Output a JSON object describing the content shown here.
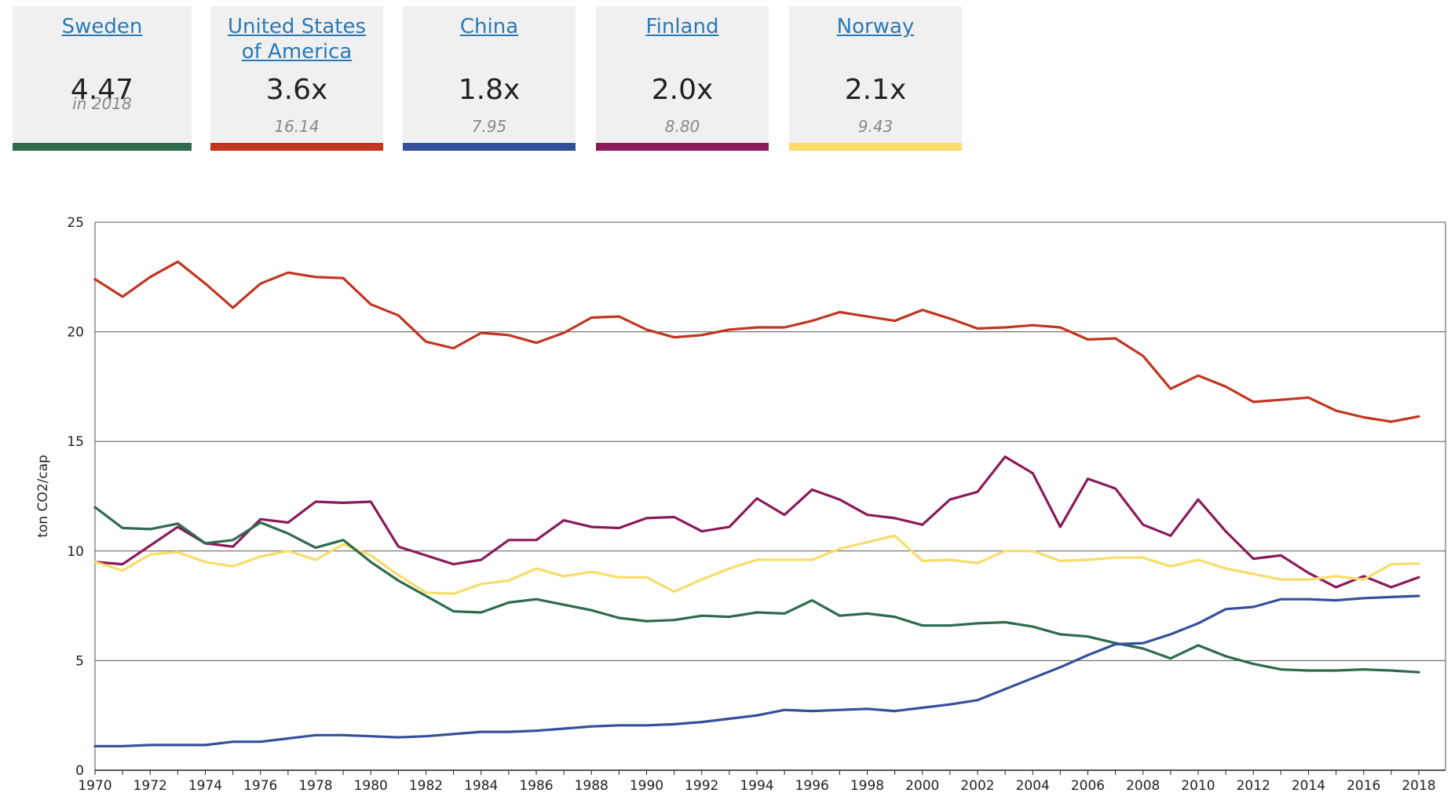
{
  "cards": [
    {
      "name": "Sweden",
      "big": "4.47",
      "small": "in 2018",
      "color": "#2e6b4e"
    },
    {
      "name": "United States of America",
      "big": "3.6x",
      "small": "16.14",
      "color": "#c13521"
    },
    {
      "name": "China",
      "big": "1.8x",
      "small": "7.95",
      "color": "#34509a"
    },
    {
      "name": "Finland",
      "big": "2.0x",
      "small": "8.80",
      "color": "#8a1a5a"
    },
    {
      "name": "Norway",
      "big": "2.1x",
      "small": "9.43",
      "color": "#fadc6a"
    }
  ],
  "chart_data": {
    "type": "line",
    "title": "",
    "xlabel": "",
    "ylabel": "ton CO2/cap",
    "ylim": [
      0,
      25
    ],
    "xlim": [
      1970,
      2018
    ],
    "yticks": [
      0,
      5,
      10,
      15,
      20,
      25
    ],
    "xticks": [
      1970,
      1972,
      1974,
      1976,
      1978,
      1980,
      1982,
      1984,
      1986,
      1988,
      1990,
      1992,
      1994,
      1996,
      1998,
      2000,
      2002,
      2004,
      2006,
      2008,
      2010,
      2012,
      2014,
      2016,
      2018
    ],
    "grid": true,
    "x": [
      1970,
      1971,
      1972,
      1973,
      1974,
      1975,
      1976,
      1977,
      1978,
      1979,
      1980,
      1981,
      1982,
      1983,
      1984,
      1985,
      1986,
      1987,
      1988,
      1989,
      1990,
      1991,
      1992,
      1993,
      1994,
      1995,
      1996,
      1997,
      1998,
      1999,
      2000,
      2001,
      2002,
      2003,
      2004,
      2005,
      2006,
      2007,
      2008,
      2009,
      2010,
      2011,
      2012,
      2013,
      2014,
      2015,
      2016,
      2017,
      2018
    ],
    "series": [
      {
        "name": "United States of America",
        "color": "#c13521",
        "values": [
          22.4,
          21.6,
          22.5,
          23.2,
          22.2,
          21.1,
          22.2,
          22.7,
          22.5,
          22.45,
          21.25,
          20.75,
          19.55,
          19.25,
          19.95,
          19.85,
          19.5,
          19.95,
          20.65,
          20.7,
          20.1,
          19.75,
          19.85,
          20.1,
          20.2,
          20.2,
          20.5,
          20.9,
          20.7,
          20.5,
          21.0,
          20.6,
          20.15,
          20.2,
          20.3,
          20.2,
          19.65,
          19.7,
          18.9,
          17.4,
          18.0,
          17.5,
          16.8,
          16.9,
          17.0,
          16.4,
          16.1,
          15.9,
          16.14
        ]
      },
      {
        "name": "Finland",
        "color": "#8a1a5a",
        "values": [
          9.5,
          9.4,
          10.25,
          11.1,
          10.35,
          10.2,
          11.45,
          11.3,
          12.25,
          12.2,
          12.25,
          10.2,
          9.8,
          9.4,
          9.6,
          10.5,
          10.5,
          11.4,
          11.1,
          11.05,
          11.5,
          11.55,
          10.9,
          11.1,
          12.4,
          11.65,
          12.8,
          12.35,
          11.65,
          11.5,
          11.2,
          12.35,
          12.7,
          14.3,
          13.55,
          11.1,
          13.3,
          12.85,
          11.2,
          10.7,
          12.35,
          10.9,
          9.65,
          9.8,
          9.0,
          8.35,
          8.85,
          8.35,
          8.8
        ]
      },
      {
        "name": "Norway",
        "color": "#fadc6a",
        "values": [
          9.5,
          9.1,
          9.85,
          9.95,
          9.5,
          9.3,
          9.75,
          10.0,
          9.6,
          10.3,
          9.8,
          8.9,
          8.1,
          8.05,
          8.5,
          8.65,
          9.2,
          8.85,
          9.05,
          8.8,
          8.8,
          8.15,
          8.7,
          9.2,
          9.6,
          9.6,
          9.6,
          10.1,
          10.4,
          10.7,
          9.55,
          9.6,
          9.45,
          10.0,
          10.0,
          9.55,
          9.6,
          9.7,
          9.7,
          9.3,
          9.6,
          9.2,
          8.95,
          8.7,
          8.7,
          8.85,
          8.7,
          9.4,
          9.43
        ]
      },
      {
        "name": "Sweden",
        "color": "#2e6b4e",
        "values": [
          12.0,
          11.05,
          11.0,
          11.25,
          10.35,
          10.5,
          11.3,
          10.8,
          10.15,
          10.5,
          9.5,
          8.65,
          7.95,
          7.25,
          7.2,
          7.65,
          7.8,
          7.55,
          7.3,
          6.95,
          6.8,
          6.85,
          7.05,
          7.0,
          7.2,
          7.15,
          7.75,
          7.05,
          7.15,
          7.0,
          6.6,
          6.6,
          6.7,
          6.75,
          6.55,
          6.2,
          6.1,
          5.8,
          5.55,
          5.1,
          5.7,
          5.2,
          4.85,
          4.6,
          4.55,
          4.55,
          4.6,
          4.55,
          4.47
        ]
      },
      {
        "name": "China",
        "color": "#34509a",
        "values": [
          1.1,
          1.1,
          1.15,
          1.15,
          1.15,
          1.3,
          1.3,
          1.45,
          1.6,
          1.6,
          1.55,
          1.5,
          1.55,
          1.65,
          1.75,
          1.75,
          1.8,
          1.9,
          2.0,
          2.05,
          2.05,
          2.1,
          2.2,
          2.35,
          2.5,
          2.75,
          2.7,
          2.75,
          2.8,
          2.7,
          2.85,
          3.0,
          3.2,
          3.7,
          4.2,
          4.7,
          5.25,
          5.75,
          5.8,
          6.2,
          6.7,
          7.35,
          7.45,
          7.8,
          7.8,
          7.75,
          7.85,
          7.9,
          7.95
        ]
      }
    ]
  }
}
